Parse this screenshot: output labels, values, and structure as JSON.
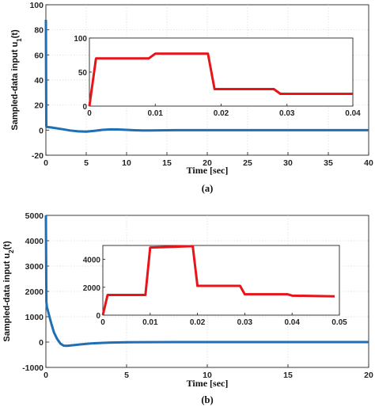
{
  "chart_data": [
    {
      "panel": "a",
      "caption": "(a)",
      "type": "line",
      "xlabel": "Time [sec]",
      "ylabel_main": "Sampled-data input u",
      "ylabel_sub": "1",
      "ylabel_tail": "(t)",
      "xlim": [
        0,
        40
      ],
      "ylim": [
        -20,
        100
      ],
      "xticks": [
        0,
        5,
        10,
        15,
        20,
        25,
        30,
        35,
        40
      ],
      "yticks": [
        -20,
        0,
        20,
        40,
        60,
        80,
        100
      ],
      "grid": true,
      "series": [
        {
          "color": "#1f6fb4",
          "x": [
            0,
            0.05,
            0.1,
            0.3,
            0.6,
            1,
            2,
            3,
            4,
            5,
            6,
            7,
            8,
            9,
            10,
            11,
            12,
            13,
            14,
            15,
            16,
            18,
            20,
            25,
            30,
            35,
            40
          ],
          "y": [
            88,
            3,
            2.6,
            2.4,
            2.2,
            1.8,
            0.8,
            -0.3,
            -1.0,
            -1.2,
            -0.6,
            0.2,
            0.6,
            0.5,
            0.2,
            -0.1,
            -0.3,
            -0.3,
            -0.2,
            -0.1,
            0,
            0,
            0,
            0,
            0,
            0,
            0
          ]
        }
      ],
      "inset": {
        "xlim": [
          0,
          0.04
        ],
        "ylim": [
          0,
          100
        ],
        "xticks": [
          0,
          0.01,
          0.02,
          0.03,
          0.04
        ],
        "yticks": [
          0,
          50,
          100
        ],
        "series": [
          {
            "color": "#e8141a",
            "x": [
              0,
              0.001,
              0.009,
              0.01,
              0.018,
              0.019,
              0.028,
              0.029,
              0.04
            ],
            "y": [
              0,
              70,
              70,
              77,
              77,
              25,
              25,
              18,
              18
            ]
          }
        ]
      }
    },
    {
      "panel": "b",
      "caption": "(b)",
      "type": "line",
      "xlabel": "Time [sec]",
      "ylabel_main": "Sampled-data input u",
      "ylabel_sub": "2",
      "ylabel_tail": "(t)",
      "xlim": [
        0,
        20
      ],
      "ylim": [
        -1000,
        5000
      ],
      "xticks": [
        0,
        5,
        10,
        15,
        20
      ],
      "yticks": [
        -1000,
        0,
        1000,
        2000,
        3000,
        4000,
        5000
      ],
      "grid": true,
      "series": [
        {
          "color": "#1f6fb4",
          "x": [
            0,
            0.03,
            0.06,
            0.1,
            0.2,
            0.35,
            0.5,
            0.7,
            0.9,
            1.1,
            1.3,
            1.6,
            2,
            2.5,
            3,
            4,
            5,
            6,
            8,
            10,
            15,
            20
          ],
          "y": [
            5000,
            1600,
            1400,
            1300,
            1050,
            700,
            380,
            120,
            -60,
            -140,
            -150,
            -130,
            -100,
            -70,
            -45,
            -20,
            -8,
            -3,
            0,
            0,
            0,
            0
          ]
        }
      ],
      "inset": {
        "xlim": [
          0,
          0.05
        ],
        "ylim": [
          0,
          5000
        ],
        "xticks": [
          0,
          0.01,
          0.02,
          0.03,
          0.04,
          0.05
        ],
        "yticks": [
          0,
          2000,
          4000
        ],
        "series": [
          {
            "color": "#e8141a",
            "x": [
              0,
              0.001,
              0.009,
              0.01,
              0.019,
              0.02,
              0.029,
              0.03,
              0.039,
              0.04,
              0.049
            ],
            "y": [
              0,
              1450,
              1450,
              4850,
              4950,
              2100,
              2100,
              1500,
              1500,
              1400,
              1350
            ]
          }
        ]
      }
    }
  ]
}
